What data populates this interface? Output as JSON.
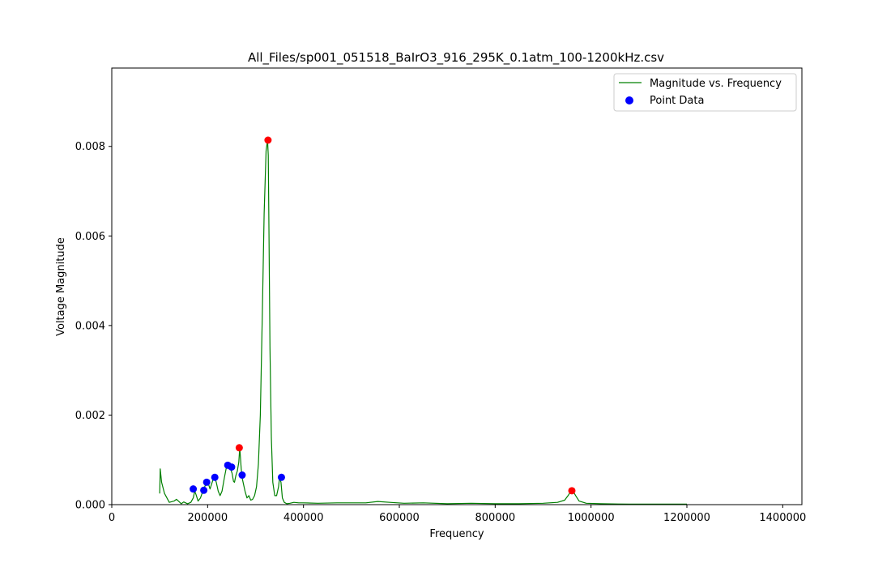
{
  "chart_data": {
    "type": "line",
    "title": "All_Files/sp001_051518_BaIrO3_916_295K_0.1atm_100-1200kHz.csv",
    "xlabel": "Frequency",
    "ylabel": "Voltage Magnitude",
    "xlim": [
      0,
      1440000
    ],
    "ylim": [
      0,
      0.00975
    ],
    "xticks": [
      0,
      200000,
      400000,
      600000,
      800000,
      1000000,
      1200000,
      1400000
    ],
    "xtick_labels": [
      "0",
      "200000",
      "400000",
      "600000",
      "800000",
      "1000000",
      "1200000",
      "1400000"
    ],
    "yticks": [
      0,
      0.002,
      0.004,
      0.006,
      0.008
    ],
    "ytick_labels": [
      "0.000",
      "0.002",
      "0.004",
      "0.006",
      "0.008"
    ],
    "grid": false,
    "legend_position": "top-right",
    "colors": {
      "line": "#008000",
      "points": "#0000ff",
      "peaks": "#ff0000"
    },
    "line_series": {
      "name": "Magnitude vs. Frequency",
      "x": [
        100000,
        101000,
        104000,
        110000,
        120000,
        130000,
        135000,
        140000,
        145000,
        150000,
        158000,
        165000,
        170000,
        173000,
        176000,
        180000,
        185000,
        190000,
        193000,
        196000,
        199000,
        202000,
        205000,
        208000,
        212000,
        215000,
        218000,
        222000,
        226000,
        230000,
        235000,
        240000,
        244000,
        248000,
        251000,
        254000,
        256000,
        259000,
        262000,
        265000,
        267000,
        270000,
        272000,
        275000,
        278000,
        282000,
        286000,
        290000,
        294000,
        298000,
        302000,
        306000,
        310000,
        314000,
        318000,
        322000,
        325000,
        326500,
        328000,
        330000,
        333000,
        336000,
        340000,
        344000,
        348000,
        350000,
        353000,
        356000,
        360000,
        365000,
        372000,
        380000,
        390000,
        400000,
        430000,
        470000,
        500000,
        530000,
        555000,
        580000,
        610000,
        650000,
        700000,
        750000,
        800000,
        850000,
        900000,
        930000,
        945000,
        952000,
        958000,
        962000,
        968000,
        975000,
        990000,
        1020000,
        1080000,
        1150000,
        1200000
      ],
      "y": [
        0.00025,
        0.0008,
        0.0005,
        0.00025,
        5e-05,
        8e-05,
        0.00012,
        7e-05,
        2e-05,
        6e-05,
        2e-05,
        5e-05,
        0.00015,
        0.0003,
        0.00022,
        8e-05,
        0.00015,
        0.0003,
        0.00038,
        0.00045,
        0.0005,
        0.00045,
        0.00035,
        0.00045,
        0.00058,
        0.0006,
        0.0005,
        0.0003,
        0.0002,
        0.0003,
        0.0006,
        0.00088,
        0.00085,
        0.0008,
        0.0007,
        0.00052,
        0.0005,
        0.00065,
        0.00075,
        0.00095,
        0.00127,
        0.0008,
        0.0006,
        0.00045,
        0.0003,
        0.00015,
        0.0002,
        0.0001,
        0.00012,
        0.0002,
        0.0004,
        0.0009,
        0.002,
        0.0042,
        0.0065,
        0.0079,
        0.00814,
        0.0078,
        0.006,
        0.0035,
        0.0015,
        0.0005,
        0.0002,
        0.0002,
        0.0004,
        0.0006,
        0.0005,
        0.00015,
        5e-05,
        2e-05,
        3e-05,
        5e-05,
        4e-05,
        4e-05,
        3e-05,
        4e-05,
        4e-05,
        4e-05,
        7e-05,
        5e-05,
        3e-05,
        4e-05,
        2e-05,
        3e-05,
        2e-05,
        2e-05,
        3e-05,
        5e-05,
        0.0001,
        0.0002,
        0.0003,
        0.00031,
        0.0002,
        8e-05,
        3e-05,
        2e-05,
        1e-05,
        1e-05,
        1e-05
      ]
    },
    "point_series": {
      "name": "Point Data",
      "x": [
        170000,
        192000,
        198000,
        215000,
        242000,
        250000,
        272000,
        354000
      ],
      "y": [
        0.00035,
        0.00032,
        0.0005,
        0.00061,
        0.00088,
        0.00084,
        0.00066,
        0.00061
      ]
    },
    "peak_points": {
      "x": [
        326000,
        266000,
        960000
      ],
      "y": [
        0.00814,
        0.00127,
        0.00031
      ]
    },
    "legend": [
      {
        "label": "Magnitude vs. Frequency",
        "marker": "line"
      },
      {
        "label": "Point Data",
        "marker": "dot"
      }
    ]
  }
}
